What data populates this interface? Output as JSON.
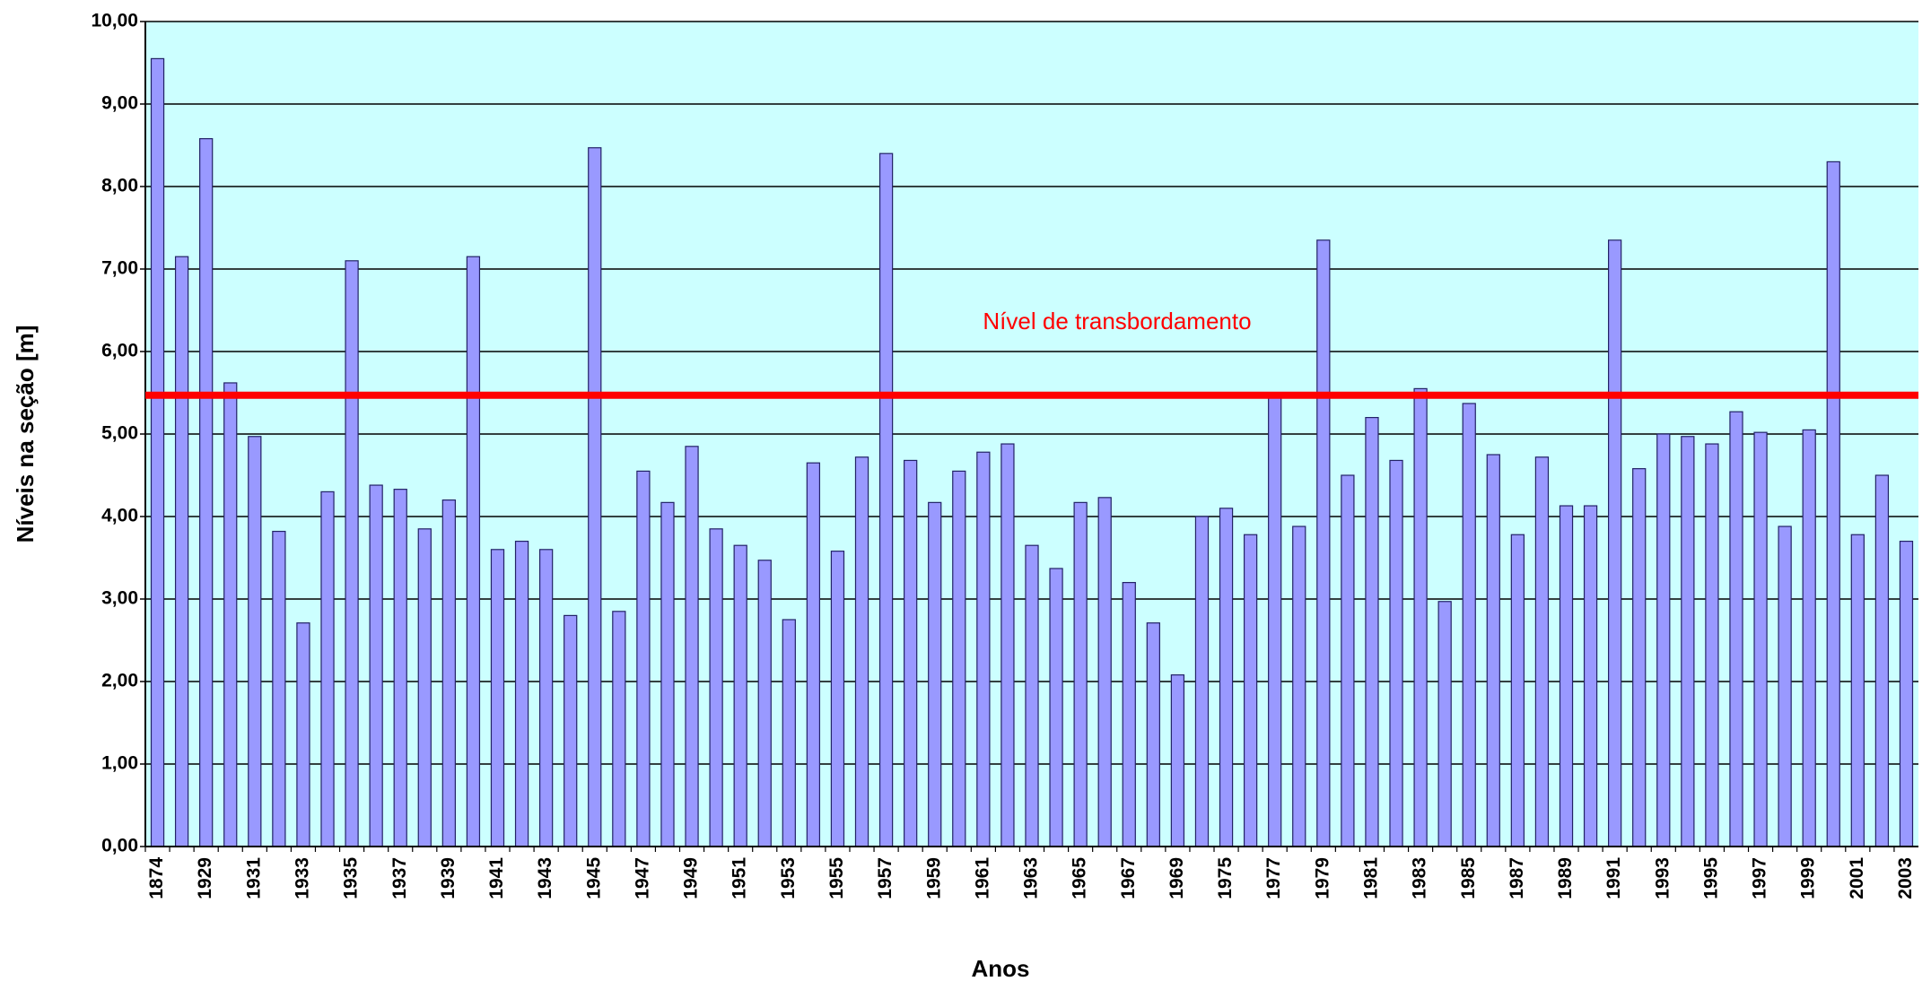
{
  "chart_data": {
    "type": "bar",
    "x_label": "Anos",
    "y_label": "Níveis na seção [m]",
    "categories": [
      "1874",
      null,
      "1929",
      null,
      "1931",
      null,
      "1933",
      null,
      "1935",
      null,
      "1937",
      null,
      "1939",
      null,
      "1941",
      null,
      "1943",
      null,
      "1945",
      null,
      "1947",
      null,
      "1949",
      null,
      "1951",
      null,
      "1953",
      null,
      "1955",
      null,
      "1957",
      null,
      "1959",
      null,
      "1961",
      null,
      "1963",
      null,
      "1965",
      null,
      "1967",
      null,
      "1969",
      null,
      "1975",
      null,
      "1977",
      null,
      "1979",
      null,
      "1981",
      null,
      "1983",
      null,
      "1985",
      null,
      "1987",
      null,
      "1989",
      null,
      "1991",
      null,
      "1993",
      null,
      "1995",
      null,
      "1997",
      null,
      "1999",
      null,
      "2001",
      null,
      "2003"
    ],
    "values": [
      9.55,
      7.15,
      8.58,
      5.62,
      4.97,
      3.82,
      2.71,
      4.3,
      7.1,
      4.38,
      4.33,
      3.85,
      4.2,
      7.15,
      3.6,
      3.7,
      3.6,
      2.8,
      8.47,
      2.85,
      4.55,
      4.17,
      4.85,
      3.85,
      3.65,
      3.47,
      2.75,
      4.65,
      3.58,
      4.72,
      8.4,
      4.68,
      4.17,
      4.55,
      4.78,
      4.88,
      3.65,
      3.37,
      4.17,
      4.23,
      3.2,
      2.71,
      2.08,
      4.0,
      4.1,
      3.78,
      5.45,
      3.88,
      7.35,
      4.5,
      5.2,
      4.68,
      5.55,
      2.97,
      5.37,
      4.75,
      3.78,
      4.72,
      4.13,
      4.13,
      7.35,
      4.58,
      5.0,
      4.97,
      4.88,
      5.27,
      5.02,
      3.88,
      5.05,
      8.3,
      3.78,
      4.5,
      3.7
    ],
    "color": "#9999ff",
    "ylim": [
      0,
      10
    ],
    "yticks": [
      {
        "value": 0,
        "label": "0,00"
      },
      {
        "value": 1,
        "label": "1,00"
      },
      {
        "value": 2,
        "label": "2,00"
      },
      {
        "value": 3,
        "label": "3,00"
      },
      {
        "value": 4,
        "label": "4,00"
      },
      {
        "value": 5,
        "label": "5,00"
      },
      {
        "value": 6,
        "label": "6,00"
      },
      {
        "value": 7,
        "label": "7,00"
      },
      {
        "value": 8,
        "label": "8,00"
      },
      {
        "value": 9,
        "label": "9,00"
      },
      {
        "value": 10,
        "label": "10,00"
      }
    ],
    "grid": true,
    "reference_line": {
      "value": 5.47,
      "label": "Nível de transbordamento",
      "color": "#ff0000"
    }
  }
}
